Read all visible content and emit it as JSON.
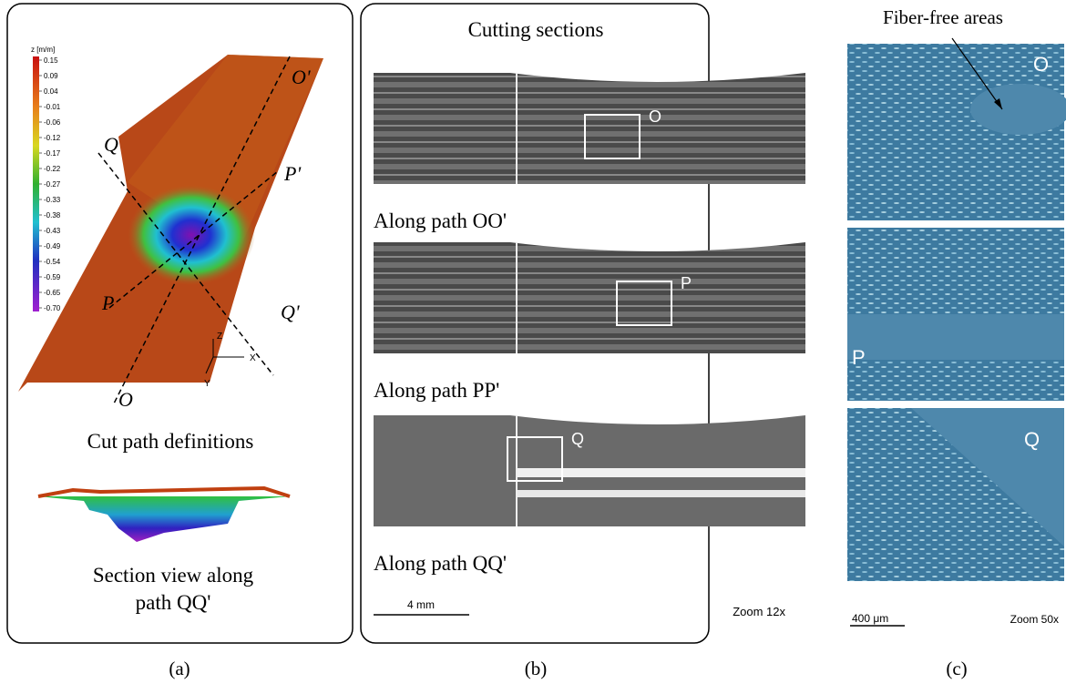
{
  "panel_a": {
    "colorbar": {
      "title": "z [m/m]",
      "labels": [
        "0.15",
        "0.09",
        "0.04",
        "-0.01",
        "-0.06",
        "-0.12",
        "-0.17",
        "-0.22",
        "-0.27",
        "-0.33",
        "-0.38",
        "-0.43",
        "-0.49",
        "-0.54",
        "-0.59",
        "-0.65",
        "-0.70"
      ]
    },
    "paths": {
      "o_prime": "O'",
      "q": "Q",
      "p_prime": "P'",
      "p": "P",
      "q_prime": "Q'",
      "o": "O"
    },
    "axes": {
      "z": "Z",
      "x": "X",
      "y": "Y"
    },
    "caption_top": "Cut path definitions",
    "caption_bottom": [
      "Section view along",
      "path QQ'"
    ],
    "label": "(a)"
  },
  "panel_b": {
    "title": "Cutting sections",
    "sections": [
      {
        "marker": "O",
        "caption": "Along path OO'"
      },
      {
        "marker": "P",
        "caption": "Along path PP'"
      },
      {
        "marker": "Q",
        "caption": "Along path QQ'"
      }
    ],
    "scale": "4 mm",
    "zoom": "Zoom 12x",
    "label": "(b)"
  },
  "panel_c": {
    "annotation": "Fiber-free areas",
    "markers": [
      "O",
      "P",
      "Q"
    ],
    "scale": "400 μm",
    "zoom": "Zoom  50x",
    "label": "(c)"
  }
}
